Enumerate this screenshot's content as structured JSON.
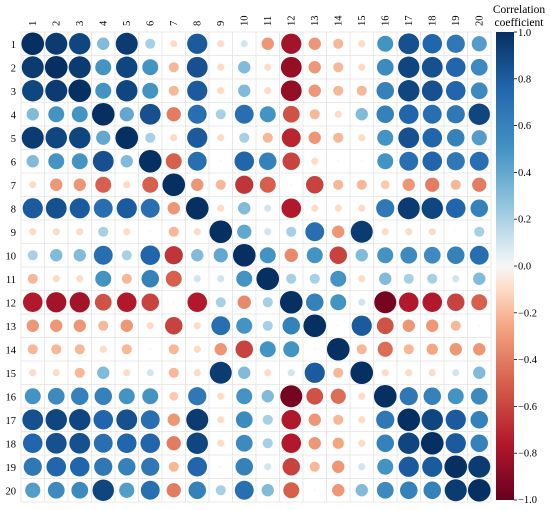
{
  "chart_data": {
    "type": "heatmap",
    "variables": [
      "1",
      "2",
      "3",
      "4",
      "5",
      "6",
      "7",
      "8",
      "9",
      "10",
      "11",
      "12",
      "13",
      "14",
      "15",
      "16",
      "17",
      "18",
      "19",
      "20"
    ],
    "matrix": [
      [
        1.0,
        0.95,
        0.9,
        0.3,
        0.95,
        0.2,
        -0.1,
        0.8,
        -0.1,
        0.1,
        -0.3,
        -0.8,
        -0.3,
        -0.2,
        -0.1,
        0.5,
        0.85,
        0.75,
        0.65,
        0.45
      ],
      [
        0.95,
        1.0,
        0.95,
        0.5,
        0.9,
        0.5,
        -0.2,
        0.85,
        -0.1,
        0.3,
        -0.1,
        -0.85,
        -0.3,
        -0.2,
        -0.1,
        0.55,
        0.9,
        0.85,
        0.75,
        0.55
      ],
      [
        0.9,
        0.95,
        1.0,
        0.5,
        0.9,
        0.5,
        -0.2,
        0.8,
        -0.1,
        0.3,
        -0.1,
        -0.85,
        -0.3,
        -0.2,
        -0.2,
        0.6,
        0.9,
        0.85,
        0.75,
        0.55
      ],
      [
        0.3,
        0.5,
        0.5,
        1.0,
        0.4,
        0.85,
        -0.4,
        0.7,
        0.2,
        0.7,
        0.5,
        -0.55,
        -0.2,
        -0.1,
        0.3,
        0.6,
        0.75,
        0.7,
        0.65,
        0.9
      ],
      [
        0.95,
        0.9,
        0.9,
        0.4,
        1.0,
        0.2,
        -0.1,
        0.8,
        -0.1,
        0.2,
        -0.2,
        -0.7,
        -0.3,
        -0.2,
        -0.1,
        0.5,
        0.85,
        0.75,
        0.6,
        0.45
      ],
      [
        0.3,
        0.5,
        0.5,
        0.85,
        0.3,
        1.0,
        -0.5,
        0.7,
        0.0,
        0.75,
        0.6,
        -0.6,
        -0.1,
        0.0,
        0.0,
        0.5,
        0.7,
        0.75,
        0.65,
        0.7
      ],
      [
        -0.1,
        -0.3,
        -0.3,
        -0.5,
        -0.1,
        -0.5,
        1.0,
        -0.3,
        -0.2,
        -0.65,
        -0.5,
        0.0,
        -0.6,
        -0.2,
        -0.2,
        -0.15,
        -0.3,
        -0.4,
        -0.2,
        -0.4
      ],
      [
        0.8,
        0.85,
        0.8,
        0.7,
        0.8,
        0.7,
        -0.3,
        1.0,
        -0.1,
        0.3,
        0.1,
        -0.75,
        -0.1,
        -0.1,
        -0.1,
        0.65,
        0.95,
        0.9,
        0.75,
        0.6
      ],
      [
        -0.1,
        -0.1,
        -0.1,
        0.2,
        -0.1,
        0.0,
        -0.2,
        -0.1,
        1.0,
        0.4,
        0.1,
        0.2,
        0.7,
        -0.3,
        0.95,
        -0.1,
        -0.1,
        -0.1,
        0.0,
        0.2
      ],
      [
        0.2,
        0.3,
        0.3,
        0.7,
        0.2,
        0.75,
        -0.65,
        0.3,
        0.4,
        1.0,
        0.5,
        -0.35,
        0.5,
        -0.6,
        0.3,
        0.5,
        0.55,
        0.55,
        0.6,
        0.7
      ],
      [
        -0.2,
        -0.1,
        -0.1,
        0.5,
        -0.2,
        0.6,
        -0.5,
        0.1,
        0.1,
        0.5,
        1.0,
        0.2,
        0.2,
        0.5,
        -0.1,
        0.3,
        0.2,
        0.2,
        0.1,
        0.3
      ],
      [
        -0.75,
        -0.8,
        -0.8,
        -0.55,
        -0.75,
        -0.6,
        0.0,
        -0.75,
        0.2,
        -0.35,
        0.2,
        1.0,
        0.6,
        0.5,
        0.1,
        -0.95,
        -0.75,
        -0.75,
        -0.6,
        -0.5
      ],
      [
        -0.3,
        -0.3,
        -0.3,
        -0.2,
        -0.3,
        -0.1,
        -0.6,
        -0.1,
        0.7,
        0.5,
        0.2,
        0.6,
        1.0,
        0.0,
        0.8,
        -0.55,
        -0.3,
        -0.3,
        -0.2,
        0.0
      ],
      [
        -0.2,
        -0.2,
        -0.2,
        -0.1,
        -0.2,
        0.0,
        -0.2,
        -0.1,
        -0.3,
        -0.6,
        0.5,
        0.5,
        0.0,
        1.0,
        -0.2,
        -0.45,
        -0.2,
        -0.25,
        -0.3,
        -0.3
      ],
      [
        -0.1,
        -0.1,
        -0.2,
        0.3,
        -0.1,
        0.1,
        -0.2,
        -0.1,
        0.95,
        0.3,
        -0.1,
        0.1,
        0.8,
        -0.2,
        1.0,
        -0.1,
        -0.1,
        -0.1,
        0.1,
        0.3
      ],
      [
        0.5,
        0.55,
        0.6,
        0.6,
        0.5,
        0.5,
        -0.15,
        0.65,
        -0.1,
        0.5,
        0.3,
        -0.95,
        -0.55,
        -0.45,
        -0.1,
        1.0,
        0.65,
        0.6,
        0.5,
        0.55
      ],
      [
        0.85,
        0.9,
        0.9,
        0.75,
        0.85,
        0.7,
        -0.3,
        0.95,
        -0.1,
        0.55,
        0.2,
        -0.75,
        -0.3,
        -0.2,
        -0.1,
        0.65,
        1.0,
        0.9,
        0.8,
        0.6
      ],
      [
        0.75,
        0.85,
        0.85,
        0.7,
        0.75,
        0.75,
        -0.4,
        0.9,
        -0.1,
        0.55,
        0.2,
        -0.75,
        -0.3,
        -0.25,
        -0.1,
        0.6,
        0.9,
        1.0,
        0.8,
        0.6
      ],
      [
        0.65,
        0.75,
        0.75,
        0.65,
        0.6,
        0.65,
        -0.2,
        0.75,
        0.0,
        0.6,
        0.1,
        -0.6,
        -0.2,
        -0.3,
        0.1,
        0.5,
        0.8,
        0.8,
        1.0,
        0.95
      ],
      [
        0.45,
        0.55,
        0.55,
        0.9,
        0.45,
        0.7,
        -0.4,
        0.6,
        0.2,
        0.7,
        0.3,
        -0.5,
        0.0,
        -0.3,
        0.3,
        0.55,
        0.6,
        0.6,
        0.95,
        1.0
      ]
    ],
    "vmin": -1.0,
    "vmax": 1.0,
    "colorbar": {
      "title_lines": [
        "Correlation",
        "coefficient"
      ],
      "ticks": [
        1.0,
        0.8,
        0.6,
        0.4,
        0.2,
        0.0,
        -0.2,
        -0.4,
        -0.6,
        -0.8,
        -1.0
      ],
      "tick_labels": [
        "1.0",
        "0.8",
        "0.6",
        "0.4",
        "0.2",
        "0.0",
        "−0.2",
        "−0.4",
        "−0.6",
        "−0.8",
        "−1.0"
      ]
    },
    "grid": true,
    "legend_placement": "right",
    "colors": {
      "neg_strong": "#67001f",
      "neg_mid": "#d6604d",
      "neutral": "#f7f7f7",
      "pos_mid": "#4393c3",
      "pos_strong": "#053061"
    }
  }
}
